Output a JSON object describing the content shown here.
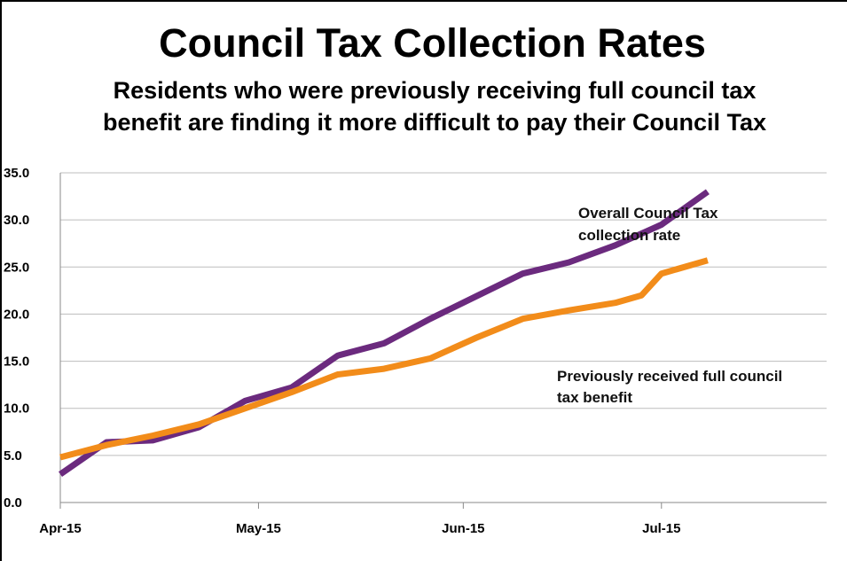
{
  "chart_data": {
    "type": "line",
    "title": "Council Tax Collection Rates",
    "subtitle": "Residents who were previously receiving full council tax benefit are finding it more difficult to pay their Council Tax",
    "xlabel": "",
    "ylabel": "",
    "ylim": [
      0,
      35
    ],
    "yticks": [
      "0.0",
      "5.0",
      "10.0",
      "15.0",
      "20.0",
      "25.0",
      "30.0",
      "35.0"
    ],
    "xlim": [
      "2015-04-01",
      "2015-07-26"
    ],
    "xticks": [
      {
        "date": "2015-04-01",
        "label": "Apr-15"
      },
      {
        "date": "2015-05-01",
        "label": "May-15"
      },
      {
        "date": "2015-06-01",
        "label": "Jun-15"
      },
      {
        "date": "2015-07-01",
        "label": "Jul-15"
      }
    ],
    "grid": true,
    "series": [
      {
        "name": "Overall Council Tax collection rate",
        "color": "#6b2a7e",
        "points": [
          [
            "2015-04-01",
            3.0
          ],
          [
            "2015-04-08",
            6.4
          ],
          [
            "2015-04-15",
            6.6
          ],
          [
            "2015-04-22",
            8.0
          ],
          [
            "2015-04-29",
            10.8
          ],
          [
            "2015-05-06",
            12.2
          ],
          [
            "2015-05-13",
            15.6
          ],
          [
            "2015-05-20",
            16.9
          ],
          [
            "2015-05-27",
            19.5
          ],
          [
            "2015-06-03",
            21.9
          ],
          [
            "2015-06-10",
            24.3
          ],
          [
            "2015-06-17",
            25.5
          ],
          [
            "2015-06-24",
            27.3
          ],
          [
            "2015-07-01",
            29.5
          ],
          [
            "2015-07-08",
            33.0
          ]
        ],
        "annotation": [
          "Overall Council Tax",
          "collection rate"
        ]
      },
      {
        "name": "Previously received full council tax benefit",
        "color": "#f28c1a",
        "points": [
          [
            "2015-04-01",
            4.8
          ],
          [
            "2015-04-08",
            6.1
          ],
          [
            "2015-04-15",
            7.1
          ],
          [
            "2015-04-22",
            8.3
          ],
          [
            "2015-04-29",
            10.0
          ],
          [
            "2015-05-06",
            11.7
          ],
          [
            "2015-05-13",
            13.6
          ],
          [
            "2015-05-20",
            14.2
          ],
          [
            "2015-05-27",
            15.3
          ],
          [
            "2015-06-03",
            17.5
          ],
          [
            "2015-06-10",
            19.5
          ],
          [
            "2015-06-17",
            20.4
          ],
          [
            "2015-06-24",
            21.2
          ],
          [
            "2015-06-28",
            22.0
          ],
          [
            "2015-07-01",
            24.3
          ],
          [
            "2015-07-08",
            25.7
          ]
        ],
        "annotation": [
          "Previously received full council",
          "tax benefit"
        ]
      }
    ]
  }
}
